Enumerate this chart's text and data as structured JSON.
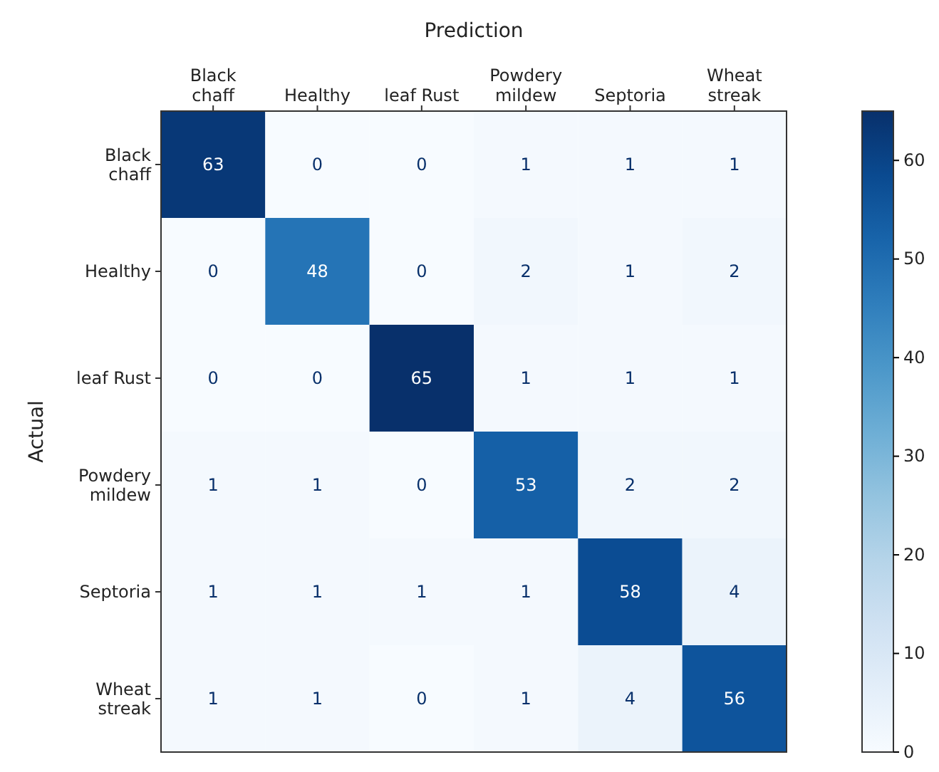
{
  "chart_data": {
    "type": "heatmap",
    "xlabel": "Prediction",
    "ylabel": "Actual",
    "categories": [
      "Black\nchaff",
      "Healthy",
      "leaf Rust",
      "Powdery\nmildew",
      "Septoria",
      "Wheat\nstreak"
    ],
    "y_categories": [
      "Black\nchaff",
      "Healthy",
      "leaf Rust",
      "Powdery\nmildew",
      "Septoria",
      "Wheat\nstreak"
    ],
    "cells": [
      [
        63,
        0,
        0,
        1,
        1,
        1
      ],
      [
        0,
        48,
        0,
        2,
        1,
        2
      ],
      [
        0,
        0,
        65,
        1,
        1,
        1
      ],
      [
        1,
        1,
        0,
        53,
        2,
        2
      ],
      [
        1,
        1,
        1,
        1,
        58,
        4
      ],
      [
        1,
        1,
        0,
        1,
        4,
        56
      ]
    ],
    "data_labels": true,
    "clim": [
      0,
      65
    ],
    "cticks": [
      0,
      10,
      20,
      30,
      40,
      50,
      60
    ]
  }
}
